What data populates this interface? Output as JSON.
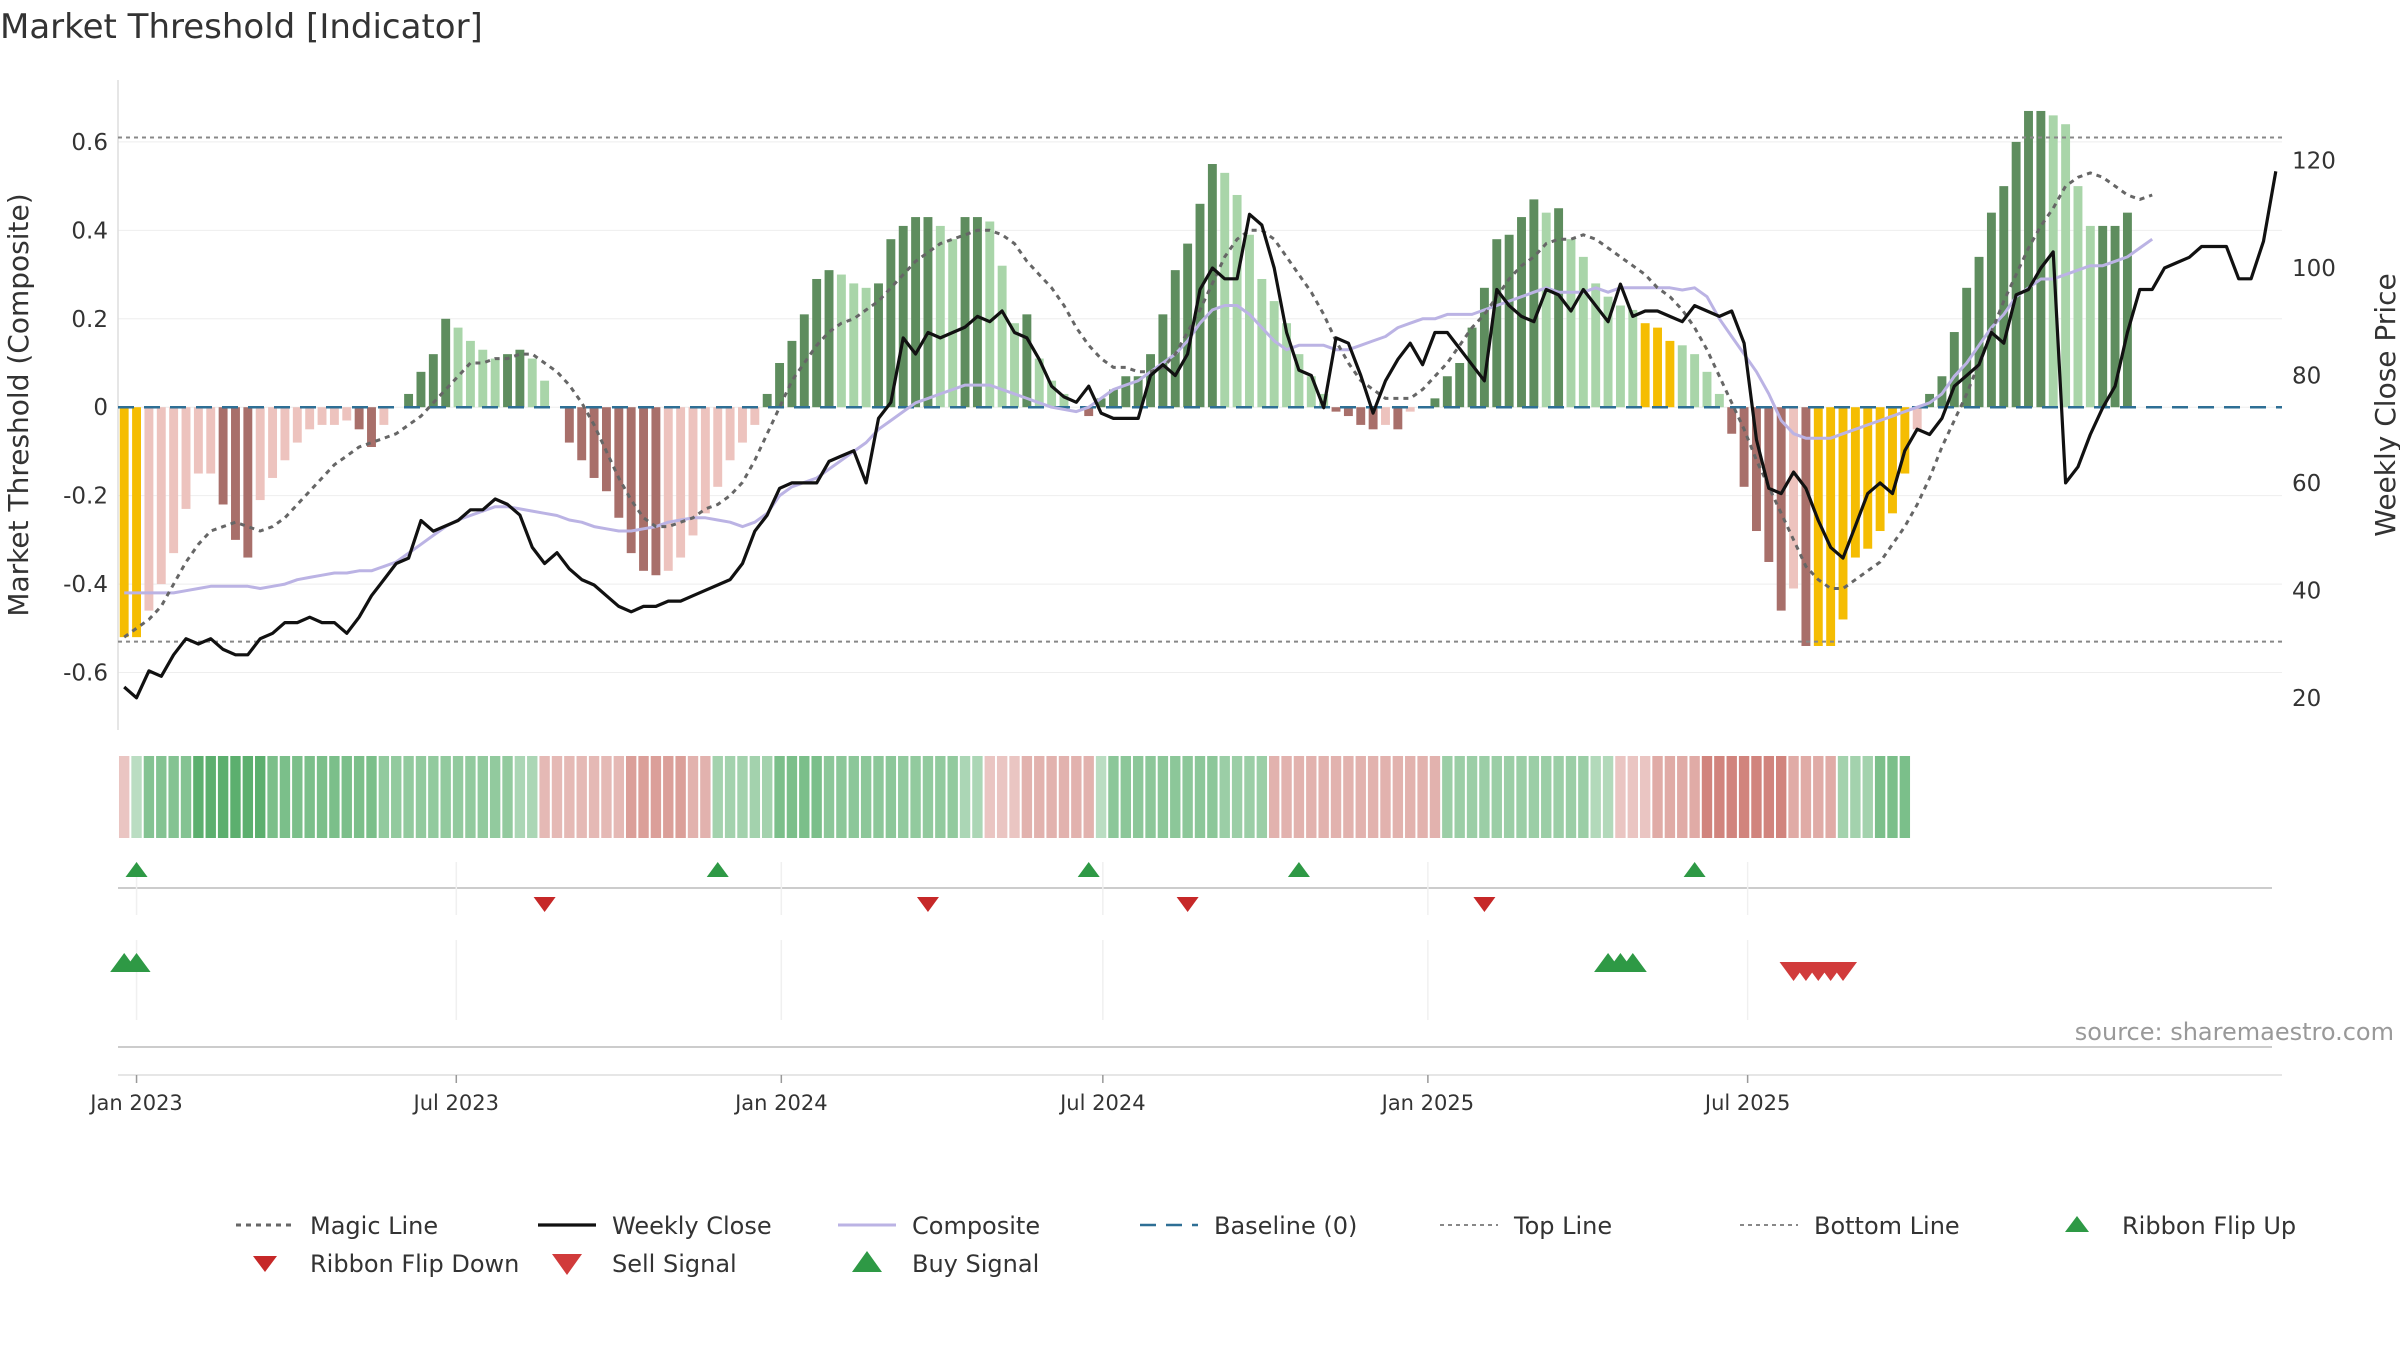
{
  "title": "Market Threshold [Indicator]",
  "source": "source: sharemaestro.com",
  "colors": {
    "extreme": "#F5BD02",
    "pos_strong": "#5E8D5E",
    "pos_light": "#A9D5A9",
    "neg_strong": "#A86F6A",
    "neg_light": "#EDC3BE",
    "close": "#111111",
    "composite": "#BBB3E4",
    "magic": "#666666",
    "baseline": "#2E6F95",
    "threshold": "#888888",
    "buy": "#2E9945",
    "sell": "#D13B3B",
    "flip_down": "#C62828"
  },
  "chart_data": {
    "type": "bar",
    "ylabel": "Market Threshold (Composite)",
    "y2label": "Weekly Close Price",
    "ylim": [
      -0.73,
      0.74
    ],
    "y2lim": [
      14,
      135
    ],
    "yticks": [
      "0.6",
      "0.4",
      "0.2",
      "0",
      "-0.2",
      "-0.4",
      "-0.6"
    ],
    "y2ticks": [
      "120",
      "100",
      "80",
      "60",
      "40",
      "20"
    ],
    "xticks": [
      "Jan 2023",
      "Jul 2023",
      "Jan 2024",
      "Jul 2024",
      "Jan 2025",
      "Jul 2025"
    ],
    "xtick_dates": [
      "2023-01-01",
      "2023-07-01",
      "2024-01-01",
      "2024-07-01",
      "2025-01-01",
      "2025-07-01"
    ],
    "start_date": "2022-12-25",
    "weeks": 145,
    "top_line": 0.61,
    "bottom_line": -0.53,
    "baseline": 0,
    "histogram": [
      -0.52,
      -0.52,
      -0.46,
      -0.4,
      -0.33,
      -0.23,
      -0.15,
      -0.15,
      -0.22,
      -0.3,
      -0.34,
      -0.21,
      -0.16,
      -0.12,
      -0.08,
      -0.05,
      -0.04,
      -0.04,
      -0.03,
      -0.05,
      -0.09,
      -0.04,
      0,
      0.03,
      0.08,
      0.12,
      0.2,
      0.18,
      0.15,
      0.13,
      0.11,
      0.12,
      0.13,
      0.11,
      0.06,
      0,
      -0.08,
      -0.12,
      -0.16,
      -0.19,
      -0.25,
      -0.33,
      -0.37,
      -0.38,
      -0.37,
      -0.34,
      -0.29,
      -0.24,
      -0.18,
      -0.12,
      -0.08,
      -0.04,
      0.03,
      0.1,
      0.15,
      0.21,
      0.29,
      0.31,
      0.3,
      0.28,
      0.27,
      0.28,
      0.38,
      0.41,
      0.43,
      0.43,
      0.41,
      0.38,
      0.43,
      0.43,
      0.42,
      0.32,
      0.19,
      0.21,
      0.11,
      0.06,
      0.03,
      0,
      -0.02,
      0.02,
      0.04,
      0.07,
      0.07,
      0.12,
      0.21,
      0.31,
      0.37,
      0.46,
      0.55,
      0.53,
      0.48,
      0.39,
      0.29,
      0.24,
      0.19,
      0.12,
      0.07,
      0.03,
      -0.01,
      -0.02,
      -0.04,
      -0.05,
      -0.04,
      -0.05,
      -0.01,
      0,
      0.02,
      0.07,
      0.1,
      0.18,
      0.27,
      0.38,
      0.39,
      0.43,
      0.47,
      0.44,
      0.45,
      0.38,
      0.34,
      0.28,
      0.25,
      0.23,
      0.22,
      0.19,
      0.18,
      0.15,
      0.14,
      0.12,
      0.08,
      0.03,
      -0.06,
      -0.18,
      -0.28,
      -0.35,
      -0.46,
      -0.41,
      -0.54,
      -0.54,
      -0.54,
      -0.48,
      -0.34,
      -0.32,
      -0.28,
      -0.24,
      -0.15,
      -0.05
    ],
    "histogram_tail": [
      0.03,
      0.07,
      0.17,
      0.27,
      0.34,
      0.44,
      0.5,
      0.6,
      0.67,
      0.67,
      0.66,
      0.64,
      0.5,
      0.41,
      0.41,
      0.41,
      0.44
    ],
    "weekly_close_tail": [
      60,
      63,
      69,
      74,
      78,
      88,
      96,
      96,
      100,
      101,
      102,
      104,
      104,
      104,
      98,
      98,
      105,
      118
    ],
    "weekly_close": [
      22,
      20,
      25,
      24,
      28,
      31,
      30,
      31,
      29,
      28,
      28,
      31,
      32,
      34,
      34,
      35,
      34,
      34,
      32,
      35,
      39,
      42,
      45,
      46,
      53,
      51,
      52,
      53,
      55,
      55,
      57,
      56,
      54,
      48,
      45,
      47,
      44,
      42,
      41,
      39,
      37,
      36,
      37,
      37,
      38,
      38,
      39,
      40,
      41,
      42,
      45,
      51,
      54,
      59,
      60,
      60,
      60,
      64,
      65,
      66,
      60,
      72,
      75,
      87,
      84,
      88,
      87,
      88,
      89,
      91,
      90,
      92,
      88,
      87,
      83,
      78,
      76,
      75,
      78,
      73,
      72,
      72,
      72,
      80,
      82,
      80,
      84,
      96,
      100,
      98,
      98,
      110,
      108,
      100,
      88,
      81,
      80,
      74,
      87,
      86,
      80,
      73,
      79,
      83,
      86,
      82,
      88,
      88,
      85,
      82,
      79,
      96,
      93,
      91,
      90,
      96,
      95,
      92,
      96,
      93,
      90,
      97,
      91,
      92,
      92,
      91,
      90,
      93,
      92,
      91,
      92,
      86,
      68,
      59,
      58,
      62,
      59,
      53,
      48,
      46,
      52,
      58,
      60,
      58,
      66,
      70,
      69,
      72,
      78,
      80,
      82,
      88,
      86,
      95,
      96,
      100,
      103
    ],
    "composite": [
      -0.42,
      -0.42,
      -0.42,
      -0.42,
      -0.42,
      -0.415,
      -0.41,
      -0.405,
      -0.405,
      -0.405,
      -0.405,
      -0.41,
      -0.405,
      -0.4,
      -0.39,
      -0.385,
      -0.38,
      -0.375,
      -0.375,
      -0.37,
      -0.37,
      -0.36,
      -0.35,
      -0.33,
      -0.31,
      -0.29,
      -0.27,
      -0.255,
      -0.245,
      -0.235,
      -0.225,
      -0.225,
      -0.23,
      -0.235,
      -0.24,
      -0.245,
      -0.255,
      -0.26,
      -0.27,
      -0.275,
      -0.28,
      -0.28,
      -0.275,
      -0.27,
      -0.26,
      -0.255,
      -0.25,
      -0.25,
      -0.255,
      -0.26,
      -0.27,
      -0.26,
      -0.24,
      -0.2,
      -0.18,
      -0.17,
      -0.16,
      -0.14,
      -0.12,
      -0.1,
      -0.08,
      -0.05,
      -0.03,
      -0.01,
      0.01,
      0.02,
      0.03,
      0.04,
      0.05,
      0.05,
      0.05,
      0.04,
      0.03,
      0.02,
      0.01,
      0,
      -0.005,
      -0.01,
      0,
      0.02,
      0.04,
      0.05,
      0.06,
      0.08,
      0.1,
      0.12,
      0.15,
      0.19,
      0.22,
      0.23,
      0.23,
      0.21,
      0.18,
      0.15,
      0.13,
      0.14,
      0.14,
      0.14,
      0.13,
      0.13,
      0.14,
      0.15,
      0.16,
      0.18,
      0.19,
      0.2,
      0.2,
      0.21,
      0.21,
      0.21,
      0.22,
      0.23,
      0.24,
      0.25,
      0.26,
      0.27,
      0.26,
      0.26,
      0.26,
      0.27,
      0.26,
      0.27,
      0.27,
      0.27,
      0.27,
      0.27,
      0.265,
      0.27,
      0.25,
      0.2,
      0.16,
      0.12,
      0.08,
      0.03,
      -0.03,
      -0.06,
      -0.07,
      -0.07,
      -0.07,
      -0.06,
      -0.05,
      -0.04,
      -0.03,
      -0.02,
      -0.01,
      0,
      0.01,
      0.03,
      0.07,
      0.1,
      0.14,
      0.18,
      0.21,
      0.25,
      0.27,
      0.29,
      0.29,
      0.3,
      0.31,
      0.32,
      0.32,
      0.33,
      0.34,
      0.36,
      0.38
    ],
    "magic_line": [
      -0.52,
      -0.5,
      -0.48,
      -0.45,
      -0.4,
      -0.35,
      -0.31,
      -0.28,
      -0.27,
      -0.26,
      -0.27,
      -0.28,
      -0.27,
      -0.25,
      -0.22,
      -0.19,
      -0.16,
      -0.13,
      -0.11,
      -0.09,
      -0.08,
      -0.07,
      -0.06,
      -0.04,
      -0.02,
      0.01,
      0.04,
      0.07,
      0.1,
      0.1,
      0.11,
      0.11,
      0.12,
      0.12,
      0.1,
      0.08,
      0.05,
      0.01,
      -0.04,
      -0.1,
      -0.16,
      -0.21,
      -0.25,
      -0.27,
      -0.27,
      -0.26,
      -0.25,
      -0.23,
      -0.22,
      -0.2,
      -0.17,
      -0.12,
      -0.06,
      0,
      0.06,
      0.1,
      0.14,
      0.17,
      0.19,
      0.2,
      0.22,
      0.24,
      0.27,
      0.3,
      0.33,
      0.35,
      0.37,
      0.38,
      0.39,
      0.4,
      0.4,
      0.39,
      0.37,
      0.33,
      0.3,
      0.27,
      0.23,
      0.18,
      0.14,
      0.11,
      0.09,
      0.09,
      0.08,
      0.08,
      0.09,
      0.12,
      0.17,
      0.22,
      0.28,
      0.34,
      0.38,
      0.4,
      0.4,
      0.38,
      0.34,
      0.3,
      0.26,
      0.21,
      0.15,
      0.1,
      0.06,
      0.04,
      0.02,
      0.02,
      0.02,
      0.04,
      0.07,
      0.1,
      0.14,
      0.18,
      0.21,
      0.25,
      0.29,
      0.32,
      0.34,
      0.37,
      0.38,
      0.38,
      0.39,
      0.38,
      0.36,
      0.34,
      0.32,
      0.3,
      0.27,
      0.25,
      0.22,
      0.18,
      0.13,
      0.07,
      0.01,
      -0.05,
      -0.12,
      -0.18,
      -0.24,
      -0.3,
      -0.36,
      -0.39,
      -0.41,
      -0.41,
      -0.39,
      -0.37,
      -0.35,
      -0.31,
      -0.27,
      -0.22,
      -0.16,
      -0.09,
      -0.03,
      0.03,
      0.1,
      0.17,
      0.24,
      0.3,
      0.36,
      0.41,
      0.45,
      0.5,
      0.52,
      0.53,
      0.52,
      0.5,
      0.48,
      0.47,
      0.48
    ],
    "ribbon": [
      -0.2,
      0.1,
      0.4,
      0.5,
      0.6,
      0.7,
      0.8,
      0.9,
      0.9,
      0.9,
      0.9,
      0.8,
      0.7,
      0.7,
      0.6,
      0.6,
      0.5,
      0.5,
      0.5,
      0.5,
      0.4,
      0.4,
      0.3,
      0.3,
      0.3,
      0.3,
      0.3,
      0.4,
      0.5,
      0.5,
      0.5,
      0.5,
      0.5,
      0.5,
      0.4,
      0.3,
      0.2,
      0.2,
      0.1,
      0.1,
      0.1,
      0.1,
      0.1,
      0.1,
      0.1,
      0.1,
      0.1,
      0.1,
      0.1,
      0.1,
      0.1,
      0.1,
      0.1,
      0.1,
      0.1,
      0.1,
      0.1,
      0.1,
      0.1,
      0.1,
      0.1,
      0.1,
      0.1,
      0.1,
      0.1,
      0.1,
      0.1,
      0.1,
      0.1,
      0.1,
      0.1,
      0.1,
      0.1,
      0.1,
      0.1,
      0.1,
      0.1,
      0.1,
      0.1,
      0.1,
      0.1,
      0.1,
      0.1,
      0.1,
      0.1,
      0.1,
      0.1,
      0.1,
      0.1,
      0.1,
      0.1,
      0.1,
      0.1,
      0.1,
      0.1,
      0.1,
      0.1,
      0.1,
      0.1,
      0.1,
      0.1,
      0.1,
      0.1,
      0.1,
      0.1,
      0.1,
      0.1,
      0.1,
      0.1,
      0.1,
      0.1,
      0.1,
      0.1,
      0.1,
      0.1,
      0.1,
      0.1,
      0.1,
      0.1,
      0.1,
      0.1,
      0.1,
      0.1,
      0.1,
      0.1,
      0.1,
      0.1,
      0.1,
      0.1,
      0.1,
      0.1,
      0.1,
      0.1,
      0.1,
      0.1,
      0.1,
      0.1,
      0.1,
      0.1,
      0.1,
      0.1,
      0.1,
      0.1,
      0.1,
      0.1,
      0.1,
      0.1,
      0.1,
      0.1,
      0.1
    ],
    "ribbon_segments": [
      {
        "from": 0,
        "to": 0,
        "sign": -1,
        "level": 0.2
      },
      {
        "from": 1,
        "to": 1,
        "sign": 1,
        "level": 0.2
      },
      {
        "from": 2,
        "to": 5,
        "sign": 1,
        "level": 0.55
      },
      {
        "from": 6,
        "to": 11,
        "sign": 1,
        "level": 0.8
      },
      {
        "from": 12,
        "to": 20,
        "sign": 1,
        "level": 0.6
      },
      {
        "from": 21,
        "to": 31,
        "sign": 1,
        "level": 0.45
      },
      {
        "from": 32,
        "to": 33,
        "sign": 1,
        "level": 0.3
      },
      {
        "from": 34,
        "to": 40,
        "sign": -1,
        "level": 0.3
      },
      {
        "from": 41,
        "to": 45,
        "sign": -1,
        "level": 0.5
      },
      {
        "from": 46,
        "to": 47,
        "sign": -1,
        "level": 0.35
      },
      {
        "from": 48,
        "to": 52,
        "sign": 1,
        "level": 0.35
      },
      {
        "from": 53,
        "to": 56,
        "sign": 1,
        "level": 0.6
      },
      {
        "from": 57,
        "to": 62,
        "sign": 1,
        "level": 0.5
      },
      {
        "from": 63,
        "to": 67,
        "sign": 1,
        "level": 0.45
      },
      {
        "from": 68,
        "to": 69,
        "sign": 1,
        "level": 0.3
      },
      {
        "from": 70,
        "to": 72,
        "sign": -1,
        "level": 0.2
      },
      {
        "from": 73,
        "to": 78,
        "sign": -1,
        "level": 0.35
      },
      {
        "from": 79,
        "to": 79,
        "sign": 1,
        "level": 0.2
      },
      {
        "from": 80,
        "to": 88,
        "sign": 1,
        "level": 0.5
      },
      {
        "from": 89,
        "to": 92,
        "sign": 1,
        "level": 0.4
      },
      {
        "from": 93,
        "to": 106,
        "sign": -1,
        "level": 0.35
      },
      {
        "from": 107,
        "to": 118,
        "sign": 1,
        "level": 0.4
      },
      {
        "from": 119,
        "to": 120,
        "sign": 1,
        "level": 0.25
      },
      {
        "from": 121,
        "to": 123,
        "sign": -1,
        "level": 0.2
      },
      {
        "from": 124,
        "to": 127,
        "sign": -1,
        "level": 0.4
      },
      {
        "from": 128,
        "to": 134,
        "sign": -1,
        "level": 0.7
      },
      {
        "from": 135,
        "to": 138,
        "sign": -1,
        "level": 0.4
      },
      {
        "from": 139,
        "to": 141,
        "sign": 1,
        "level": 0.35
      },
      {
        "from": 142,
        "to": 144,
        "sign": 1,
        "level": 0.6
      }
    ],
    "ribbon_flip_up": [
      1,
      48,
      79,
      98,
      129
    ],
    "ribbon_flip_down": [
      33,
      67,
      86,
      109
    ],
    "buy_signal_dates": [
      "2022-12-25",
      "2023-01-01",
      "2025-04-13",
      "2025-04-20",
      "2025-04-27"
    ],
    "sell_signal_dates": [
      "2025-07-27",
      "2025-08-03",
      "2025-08-10",
      "2025-08-17",
      "2025-08-24"
    ],
    "flip_up_dates": [
      "2023-01-01",
      "2023-11-26",
      "2024-06-23",
      "2024-10-20",
      "2025-06-01"
    ],
    "flip_down_dates": [
      "2023-08-20",
      "2024-03-24",
      "2024-08-18",
      "2025-02-02"
    ],
    "extreme_low_weeks": [
      0,
      1,
      123,
      124,
      125
    ],
    "extreme_high_weeks": [
      137,
      138,
      139,
      140,
      141,
      142,
      143,
      144
    ],
    "legend": [
      {
        "label": "Magic Line",
        "kind": "dotted",
        "color": "#666666"
      },
      {
        "label": "Weekly Close",
        "kind": "solid",
        "color": "#111111"
      },
      {
        "label": "Composite",
        "kind": "solid-light",
        "color": "#BBB3E4"
      },
      {
        "label": "Baseline (0)",
        "kind": "dashed",
        "color": "#2E6F95"
      },
      {
        "label": "Top Line",
        "kind": "dotted-thin",
        "color": "#888888"
      },
      {
        "label": "Bottom Line",
        "kind": "dotted-thin",
        "color": "#888888"
      },
      {
        "label": "Ribbon Flip Up",
        "kind": "tri-up",
        "color": "#2E9945"
      },
      {
        "label": "Ribbon Flip Down",
        "kind": "tri-down",
        "color": "#C62828"
      },
      {
        "label": "Sell Signal",
        "kind": "tri-down-big",
        "color": "#D13B3B"
      },
      {
        "label": "Buy Signal",
        "kind": "tri-up-big",
        "color": "#2E9945"
      }
    ]
  }
}
